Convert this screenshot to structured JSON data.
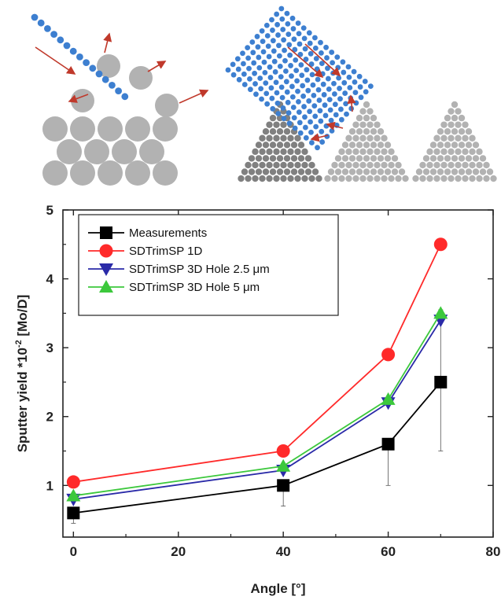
{
  "schematic": {
    "blue_particle_color": "#3d7fd0",
    "target_particle_color_light": "#b2b2b2",
    "target_particle_color_dark": "#808080",
    "arrow_color": "#c0392b"
  },
  "chart_data": {
    "type": "line",
    "xlabel": "Angle [°]",
    "ylabel": "Sputter yield *10",
    "ylabel_sup": "-2",
    "ylabel_unit": " [Mo/D]",
    "xlim": [
      -2,
      80
    ],
    "ylim": [
      0.25,
      5
    ],
    "xticks": [
      0,
      20,
      40,
      60,
      80
    ],
    "xtick_labels": [
      "0",
      "20",
      "40",
      "60",
      "80"
    ],
    "yticks": [
      1,
      2,
      3,
      4,
      5
    ],
    "ytick_labels": [
      "1",
      "2",
      "3",
      "4",
      "5"
    ],
    "x": [
      0,
      40,
      60,
      70
    ],
    "legend_position": "top-left",
    "series": [
      {
        "name": "Measurements",
        "color": "#000000",
        "marker": "square",
        "values": [
          0.6,
          1.0,
          1.6,
          2.5
        ],
        "err_lo": [
          0.15,
          0.3,
          0.6,
          1.0
        ],
        "err_hi": [
          0.0,
          0.0,
          0.0,
          1.05
        ]
      },
      {
        "name": "SDTrimSP 1D",
        "color": "#ff2a2a",
        "marker": "circle",
        "values": [
          1.05,
          1.5,
          2.9,
          4.5
        ]
      },
      {
        "name": "SDTrimSP 3D Hole 2.5 μm",
        "color": "#2a2aa8",
        "marker": "triangle-down",
        "values": [
          0.8,
          1.22,
          2.2,
          3.4
        ]
      },
      {
        "name": "SDTrimSP 3D Hole 5 μm",
        "color": "#3cc83c",
        "marker": "triangle-up",
        "values": [
          0.85,
          1.28,
          2.25,
          3.5
        ]
      }
    ]
  }
}
